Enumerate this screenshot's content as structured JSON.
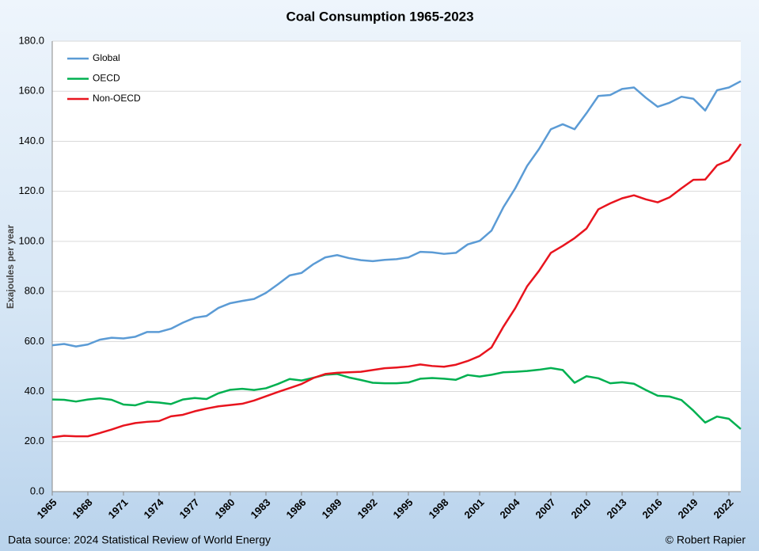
{
  "chart_data": {
    "type": "line",
    "title": "Coal Consumption 1965-2023",
    "ylabel": "Exajoules per year",
    "source": "Data source: 2024 Statistical Review of World Energy",
    "credit": "© Robert Rapier",
    "x": [
      1965,
      1966,
      1967,
      1968,
      1969,
      1970,
      1971,
      1972,
      1973,
      1974,
      1975,
      1976,
      1977,
      1978,
      1979,
      1980,
      1981,
      1982,
      1983,
      1984,
      1985,
      1986,
      1987,
      1988,
      1989,
      1990,
      1991,
      1992,
      1993,
      1994,
      1995,
      1996,
      1997,
      1998,
      1999,
      2000,
      2001,
      2002,
      2003,
      2004,
      2005,
      2006,
      2007,
      2008,
      2009,
      2010,
      2011,
      2012,
      2013,
      2014,
      2015,
      2016,
      2017,
      2018,
      2019,
      2020,
      2021,
      2022,
      2023
    ],
    "xlim": [
      1965,
      2023
    ],
    "xticks": [
      1965,
      1968,
      1971,
      1974,
      1977,
      1980,
      1983,
      1986,
      1989,
      1992,
      1995,
      1998,
      2001,
      2004,
      2007,
      2010,
      2013,
      2016,
      2019,
      2022
    ],
    "ylim": [
      0,
      180
    ],
    "yticks": [
      {
        "value": 0,
        "label": "0.0"
      },
      {
        "value": 20,
        "label": "20.0"
      },
      {
        "value": 40,
        "label": "40.0"
      },
      {
        "value": 60,
        "label": "60.0"
      },
      {
        "value": 80,
        "label": "80.0"
      },
      {
        "value": 100,
        "label": "100.0"
      },
      {
        "value": 120,
        "label": "120.0"
      },
      {
        "value": 140,
        "label": "140.0"
      },
      {
        "value": 160,
        "label": "160.0"
      },
      {
        "value": 180,
        "label": "180.0"
      }
    ],
    "grid": true,
    "legend": "upper left",
    "series": [
      {
        "name": "Global",
        "color": "#5b9bd5",
        "values": [
          58.5,
          59.0,
          58.0,
          58.8,
          60.7,
          61.5,
          61.2,
          61.9,
          63.8,
          63.8,
          65.1,
          67.5,
          69.5,
          70.2,
          73.4,
          75.3,
          76.2,
          77.0,
          79.4,
          82.8,
          86.4,
          87.4,
          90.9,
          93.6,
          94.5,
          93.3,
          92.5,
          92.1,
          92.6,
          92.9,
          93.6,
          95.8,
          95.6,
          95.0,
          95.4,
          98.8,
          100.2,
          104.3,
          113.6,
          121.2,
          130.2,
          136.9,
          144.8,
          146.8,
          144.8,
          151.2,
          158.1,
          158.5,
          160.9,
          161.5,
          157.4,
          153.8,
          155.4,
          157.8,
          157.0,
          152.3,
          160.4,
          161.5,
          164.0
        ]
      },
      {
        "name": "OECD",
        "color": "#00b050",
        "values": [
          36.8,
          36.7,
          36.0,
          36.8,
          37.3,
          36.7,
          34.8,
          34.5,
          35.9,
          35.6,
          35.0,
          36.8,
          37.4,
          37.0,
          39.3,
          40.7,
          41.1,
          40.6,
          41.3,
          43.0,
          45.0,
          44.4,
          45.5,
          46.7,
          47.0,
          45.6,
          44.6,
          43.5,
          43.3,
          43.3,
          43.6,
          45.1,
          45.4,
          45.1,
          44.7,
          46.6,
          46.0,
          46.7,
          47.7,
          47.9,
          48.2,
          48.7,
          49.4,
          48.6,
          43.5,
          46.1,
          45.3,
          43.3,
          43.7,
          43.1,
          40.6,
          38.3,
          38.0,
          36.6,
          32.4,
          27.6,
          30.0,
          29.1,
          25.0
        ]
      },
      {
        "name": "Non-OECD",
        "color": "#e8141e",
        "values": [
          21.7,
          22.3,
          22.1,
          22.1,
          23.4,
          24.8,
          26.4,
          27.4,
          27.9,
          28.2,
          30.1,
          30.7,
          32.1,
          33.2,
          34.1,
          34.6,
          35.1,
          36.4,
          38.1,
          39.8,
          41.4,
          43.0,
          45.4,
          47.0,
          47.5,
          47.7,
          47.9,
          48.6,
          49.3,
          49.6,
          50.0,
          50.8,
          50.2,
          49.9,
          50.7,
          52.2,
          54.2,
          57.6,
          65.9,
          73.3,
          82.0,
          88.2,
          95.4,
          98.2,
          101.3,
          105.1,
          112.8,
          115.2,
          117.2,
          118.4,
          116.8,
          115.6,
          117.6,
          121.2,
          124.6,
          124.7,
          130.4,
          132.4,
          138.9
        ]
      }
    ]
  }
}
